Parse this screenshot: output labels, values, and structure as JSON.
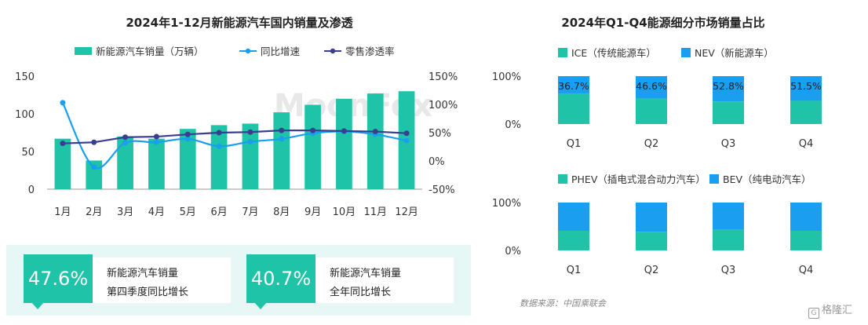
{
  "colors": {
    "teal": "#1fc4a8",
    "blue": "#1a9ef0",
    "navy": "#3a3e8f",
    "axis": "#333333"
  },
  "chart_data": [
    {
      "type": "bar",
      "title": "2024年1-12月新能源汽车国内销量及渗透",
      "categories": [
        "1月",
        "2月",
        "3月",
        "4月",
        "5月",
        "6月",
        "7月",
        "8月",
        "9月",
        "10月",
        "11月",
        "12月"
      ],
      "ylim": [
        0,
        150
      ],
      "yticks": [
        "0",
        "50",
        "100",
        "150"
      ],
      "y2lim": [
        -50,
        150
      ],
      "y2ticks": [
        "-50%",
        "0%",
        "50%",
        "100%",
        "150%"
      ],
      "series": [
        {
          "name": "新能源汽车销量（万辆）",
          "type": "bar",
          "axis": "left",
          "values": [
            67,
            38,
            70,
            67,
            80,
            85,
            87,
            102,
            112,
            120,
            127,
            130
          ]
        },
        {
          "name": "同比增速",
          "type": "line",
          "axis": "right",
          "values": [
            103,
            -11,
            32,
            33,
            39,
            26,
            34,
            39,
            49,
            52,
            47,
            36
          ]
        },
        {
          "name": "零售渗透率",
          "type": "line",
          "axis": "right",
          "values": [
            31,
            33,
            42,
            43,
            47,
            50,
            51,
            54,
            54,
            53,
            52,
            49
          ]
        }
      ],
      "legend_position": "top",
      "grid": false,
      "watermark": "MoonFox"
    },
    {
      "type": "bar",
      "title": "2024年Q1-Q4能源细分市场销量占比",
      "stacked": true,
      "categories": [
        "Q1",
        "Q2",
        "Q3",
        "Q4"
      ],
      "yticks": [
        "0%",
        "100%"
      ],
      "series": [
        {
          "name": "ICE（传统能源车）",
          "values": [
            63.3,
            53.4,
            47.2,
            48.5
          ]
        },
        {
          "name": "NEV（新能源车）",
          "values": [
            36.7,
            46.6,
            52.8,
            51.5
          ]
        }
      ],
      "data_labels": [
        "36.7%",
        "46.6%",
        "52.8%",
        "51.5%"
      ],
      "legend_position": "top"
    },
    {
      "type": "bar",
      "stacked": true,
      "categories": [
        "Q1",
        "Q2",
        "Q3",
        "Q4"
      ],
      "yticks": [
        "0%",
        "100%"
      ],
      "series": [
        {
          "name": "PHEV（插电式混合动力汽车）",
          "values": [
            41,
            39,
            43,
            41
          ]
        },
        {
          "name": "BEV（纯电动汽车）",
          "values": [
            59,
            61,
            57,
            59
          ]
        }
      ],
      "legend_position": "top"
    }
  ],
  "kpis": [
    {
      "value": "47.6%",
      "line1": "新能源汽车销量",
      "line2": "第四季度同比增长"
    },
    {
      "value": "40.7%",
      "line1": "新能源汽车销量",
      "line2": "全年同比增长"
    }
  ],
  "source": "数据来源：中国乘联会",
  "brand": "格隆汇"
}
